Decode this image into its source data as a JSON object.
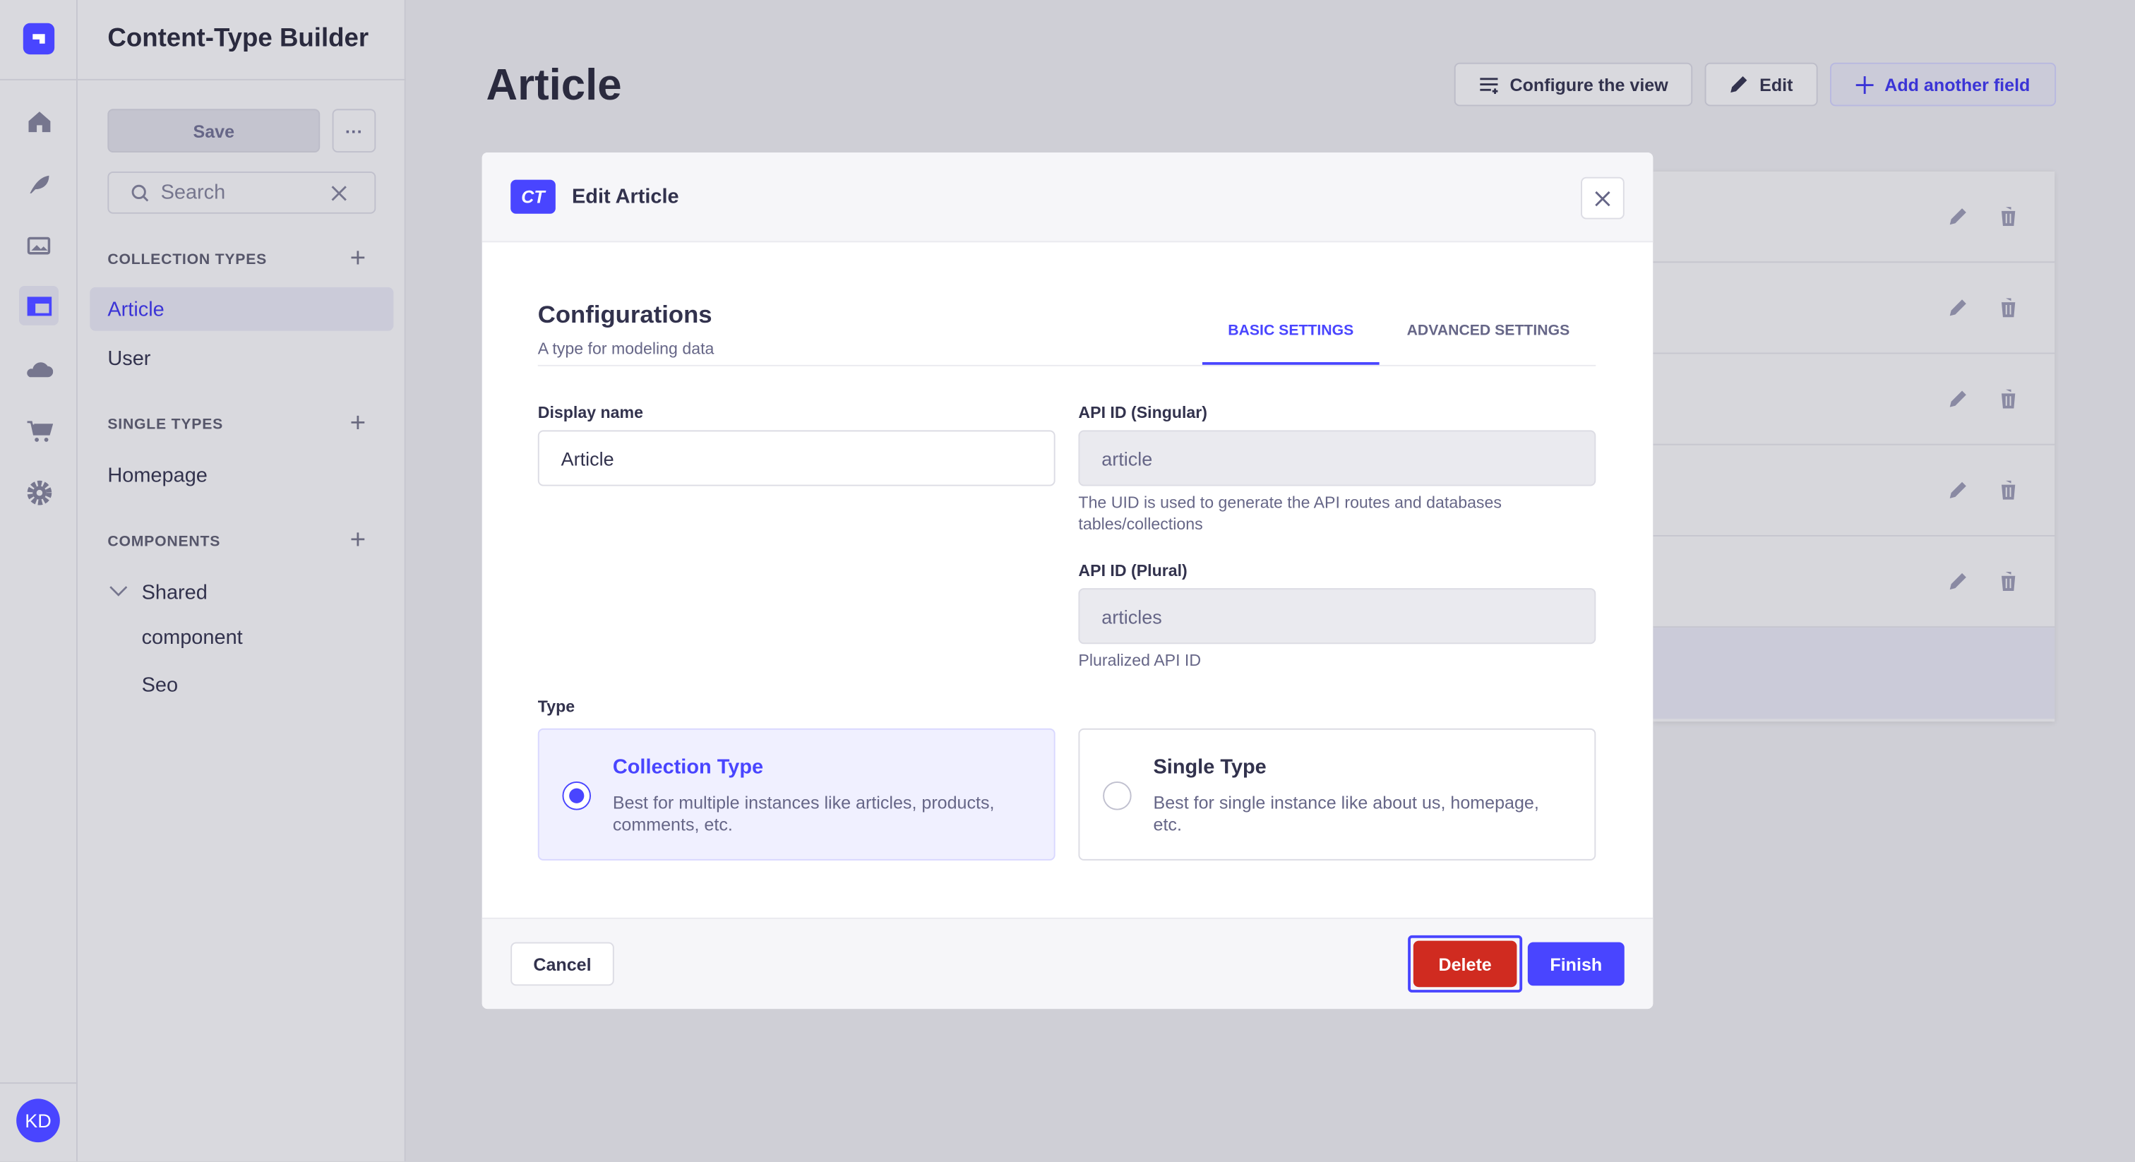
{
  "colors": {
    "primary": "#4945ff",
    "danger": "#d02b20"
  },
  "rail": {
    "icons": [
      "home-icon",
      "feather-icon",
      "media-library-icon",
      "content-type-builder-icon",
      "cloud-icon",
      "cart-icon",
      "settings-icon"
    ],
    "avatar": "KD"
  },
  "sidebar": {
    "title": "Content-Type Builder",
    "save_label": "Save",
    "more_label": "···",
    "search_placeholder": "Search",
    "collection_types": {
      "label": "COLLECTION TYPES",
      "items": [
        "Article",
        "User"
      ]
    },
    "single_types": {
      "label": "SINGLE TYPES",
      "items": [
        "Homepage"
      ]
    },
    "components": {
      "label": "COMPONENTS",
      "group": "Shared",
      "items": [
        "component",
        "Seo"
      ]
    }
  },
  "main": {
    "title": "Article",
    "configure_label": "Configure the view",
    "edit_label": "Edit",
    "add_field_label": "Add another field"
  },
  "modal": {
    "badge": "CT",
    "title": "Edit Article",
    "heading": "Configurations",
    "subtitle": "A type for modeling data",
    "tabs": [
      {
        "label": "BASIC SETTINGS",
        "active": true
      },
      {
        "label": "ADVANCED SETTINGS",
        "active": false
      }
    ],
    "display_name": {
      "label": "Display name",
      "value": "Article"
    },
    "api_singular": {
      "label": "API ID (Singular)",
      "value": "article",
      "help": "The UID is used to generate the API routes and databases tables/collections"
    },
    "api_plural": {
      "label": "API ID (Plural)",
      "value": "articles",
      "help": "Pluralized API ID"
    },
    "type": {
      "label": "Type",
      "options": [
        {
          "title": "Collection Type",
          "desc": "Best for multiple instances like articles, products, comments, etc.",
          "selected": true
        },
        {
          "title": "Single Type",
          "desc": "Best for single instance like about us, homepage, etc.",
          "selected": false
        }
      ]
    },
    "cancel_label": "Cancel",
    "delete_label": "Delete",
    "finish_label": "Finish"
  }
}
